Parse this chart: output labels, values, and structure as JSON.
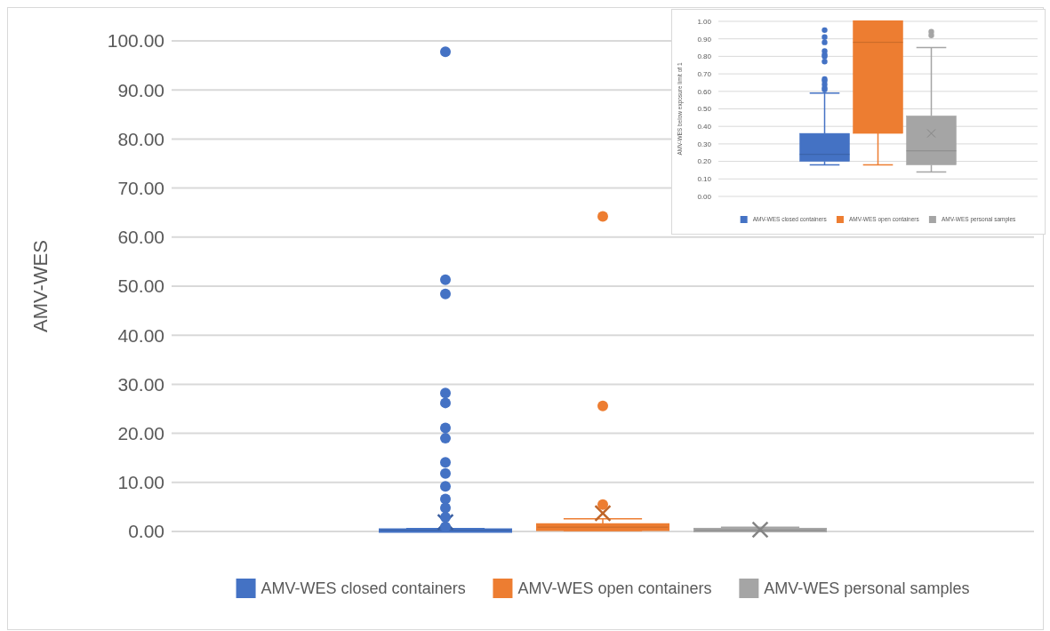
{
  "chart_data": [
    {
      "type": "box",
      "ylabel": "AMV-WES",
      "categories": [
        null
      ],
      "ylim": [
        0,
        100
      ],
      "yticks": [
        {
          "value": 0,
          "label": "0.00"
        },
        {
          "value": 10,
          "label": "10.00"
        },
        {
          "value": 20,
          "label": "20.00"
        },
        {
          "value": 30,
          "label": "30.00"
        },
        {
          "value": 40,
          "label": "40.00"
        },
        {
          "value": 50,
          "label": "50.00"
        },
        {
          "value": 60,
          "label": "60.00"
        },
        {
          "value": 70,
          "label": "70.00"
        },
        {
          "value": 80,
          "label": "80.00"
        },
        {
          "value": 90,
          "label": "90.00"
        },
        {
          "value": 100,
          "label": "100.00"
        }
      ],
      "grid": "y",
      "legend": "bottom",
      "marker": "circle",
      "tick_labels": "y",
      "series": [
        {
          "name": "AMV-WES closed containers",
          "color": "#4472c4",
          "boxes": [
            {
              "low": 0.18,
              "q1": 0.2,
              "median": 0.24,
              "q3": 0.36,
              "high": 0.59,
              "mean": 1.9,
              "outliers": [
                97.8,
                51.3,
                48.4,
                28.2,
                26.2,
                21.1,
                19,
                14.1,
                11.8,
                9.2,
                6.6,
                4.8,
                2.9,
                0.95
              ]
            }
          ]
        },
        {
          "name": "AMV-WES open containers",
          "color": "#ed7d31",
          "boxes": [
            {
              "low": 0.18,
              "q1": 0.36,
              "median": 0.88,
              "q3": 1.4,
              "high": 2.6,
              "mean": 3.7,
              "outliers": [
                64.2,
                25.6,
                5.5
              ]
            }
          ]
        },
        {
          "name": "AMV-WES personal samples",
          "color": "#a5a5a5",
          "boxes": [
            {
              "low": 0.14,
              "q1": 0.18,
              "median": 0.26,
              "q3": 0.46,
              "high": 0.85,
              "mean": 0.36
            }
          ]
        }
      ]
    },
    {
      "type": "box",
      "ylabel": "AMV-WES below exposure limit of 1",
      "categories": [
        null
      ],
      "ylim": [
        0,
        1
      ],
      "yticks": [
        {
          "value": 0,
          "label": "0.00"
        },
        {
          "value": 0.1,
          "label": "0.10"
        },
        {
          "value": 0.2,
          "label": "0.20"
        },
        {
          "value": 0.3,
          "label": "0.30"
        },
        {
          "value": 0.4,
          "label": "0.40"
        },
        {
          "value": 0.5,
          "label": "0.50"
        },
        {
          "value": 0.6,
          "label": "0.60"
        },
        {
          "value": 0.7,
          "label": "0.70"
        },
        {
          "value": 0.8,
          "label": "0.80"
        },
        {
          "value": 0.9,
          "label": "0.90"
        },
        {
          "value": 1,
          "label": "1.00"
        }
      ],
      "grid": "y",
      "legend": "bottom",
      "marker": "circle",
      "tick_labels": "y",
      "series": [
        {
          "name": "AMV-WES closed containers",
          "color": "#4472c4",
          "boxes": [
            {
              "low": 0.18,
              "q1": 0.2,
              "median": 0.24,
              "q3": 0.36,
              "high": 0.59,
              "outliers": [
                0.95,
                0.91,
                0.88,
                0.83,
                0.81,
                0.8,
                0.77,
                0.67,
                0.66,
                0.64,
                0.62,
                0.61
              ]
            }
          ]
        },
        {
          "name": "AMV-WES open containers",
          "color": "#ed7d31",
          "boxes": [
            {
              "low": 0.18,
              "q1": 0.36,
              "median": 0.88,
              "q3": 1.4,
              "high": 2.6
            }
          ]
        },
        {
          "name": "AMV-WES personal samples",
          "color": "#a5a5a5",
          "boxes": [
            {
              "low": 0.14,
              "q1": 0.18,
              "median": 0.26,
              "q3": 0.46,
              "high": 0.85,
              "mean": 0.36,
              "outliers": [
                0.94,
                0.92
              ]
            }
          ]
        }
      ]
    }
  ]
}
